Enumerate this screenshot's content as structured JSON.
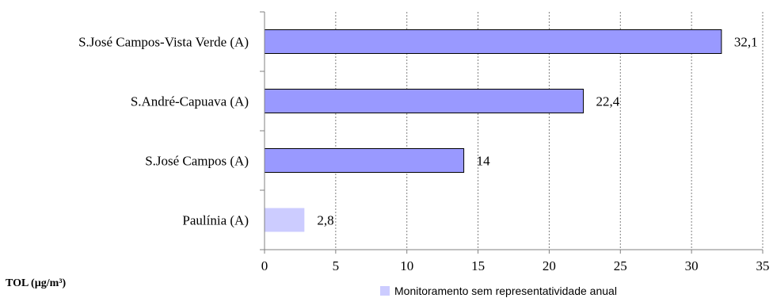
{
  "chart_data": {
    "type": "bar",
    "orientation": "horizontal",
    "categories": [
      "S.José Campos-Vista Verde (A)",
      "S.André-Capuava (A)",
      "S.José Campos (A)",
      "Paulínia (A)"
    ],
    "values": [
      32.1,
      22.4,
      14,
      2.8
    ],
    "value_labels": [
      "32,1",
      "22,4",
      "14",
      "2,8"
    ],
    "representative": [
      true,
      true,
      true,
      false
    ],
    "bar_color": "#9999ff",
    "bar_color_nonrepresentative": "#ccccff",
    "xlim": [
      0,
      35
    ],
    "xticks": [
      0,
      5,
      10,
      15,
      20,
      25,
      30,
      35
    ],
    "grid": "vertical-dotted",
    "unit_label": "TOL (µg/m³)",
    "legend": {
      "placement": "bottom-center",
      "entries": [
        {
          "label": "Monitoramento sem representatividade anual",
          "color": "#ccccff"
        }
      ]
    }
  }
}
